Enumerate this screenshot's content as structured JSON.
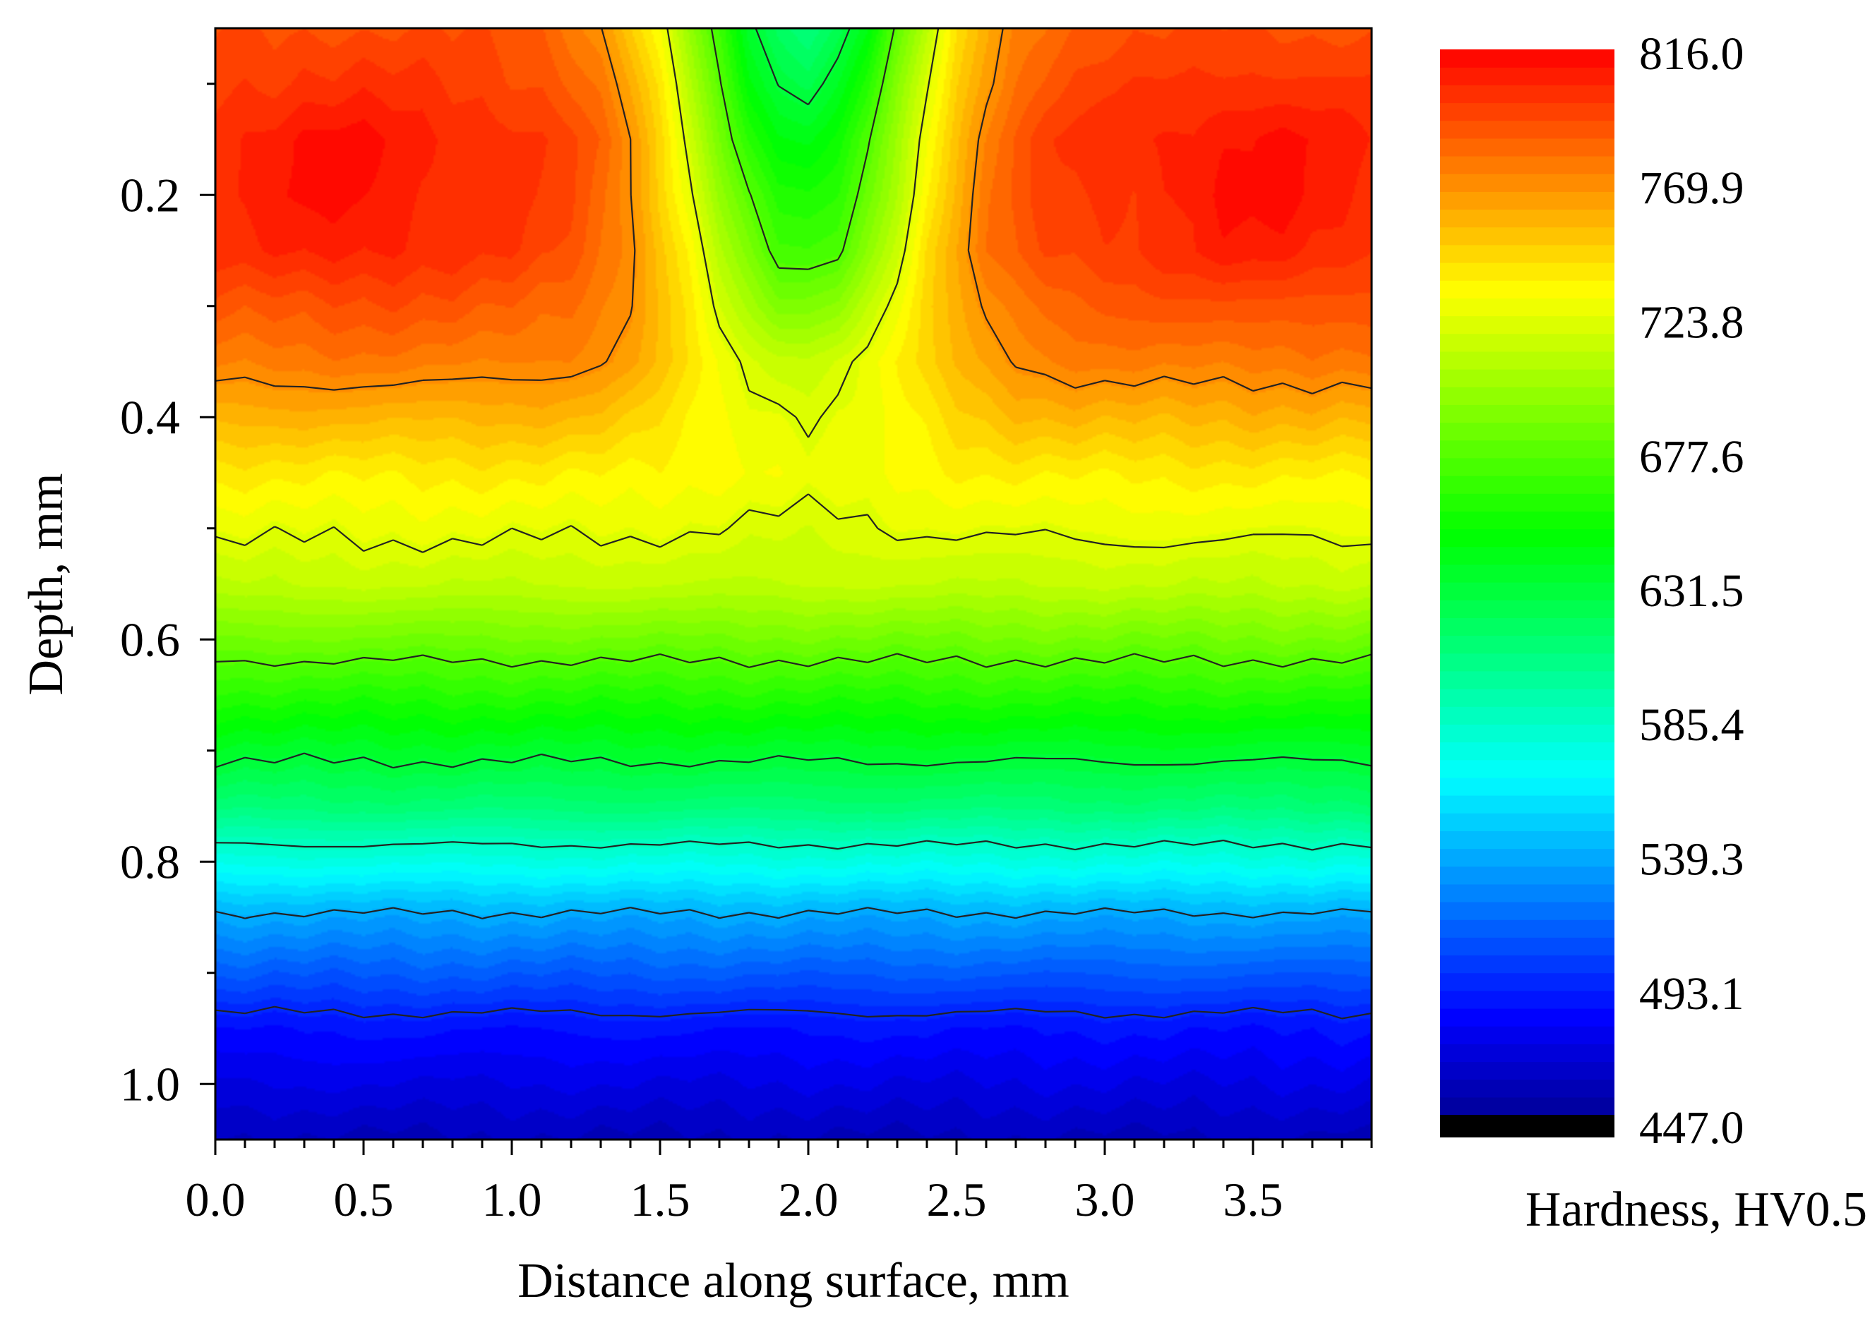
{
  "chart_data": {
    "type": "heatmap",
    "subtype": "filled-contour",
    "xlabel": "Distance along surface, mm",
    "ylabel": "Depth, mm",
    "xlim": [
      0.0,
      3.9
    ],
    "ylim": [
      0.05,
      1.05
    ],
    "y_inverted": true,
    "x_ticks": [
      0.0,
      0.5,
      1.0,
      1.5,
      2.0,
      2.5,
      3.0,
      3.5
    ],
    "x_tick_labels": [
      "0.0",
      "0.5",
      "1.0",
      "1.5",
      "2.0",
      "2.5",
      "3.0",
      "3.5"
    ],
    "y_ticks": [
      0.2,
      0.4,
      0.6,
      0.8,
      1.0
    ],
    "y_tick_labels": [
      "0.2",
      "0.4",
      "0.6",
      "0.8",
      "1.0"
    ],
    "colorbar": {
      "label": "Hardness, HV0.5",
      "min": 447.0,
      "max": 816.0,
      "tick_values": [
        816.0,
        769.9,
        723.8,
        677.6,
        631.5,
        585.4,
        539.3,
        493.1,
        447.0
      ],
      "tick_labels": [
        "816.0",
        "769.9",
        "723.8",
        "677.6",
        "631.5",
        "585.4",
        "539.3",
        "493.1",
        "447.0"
      ],
      "colors": [
        "#000000",
        "#0000ff",
        "#00ffff",
        "#00ff00",
        "#ffff00",
        "#ff0000"
      ],
      "levels": 60
    },
    "contour_levels": [
      492,
      538,
      584,
      630,
      676,
      722,
      768
    ],
    "grid_x": [
      0.0,
      0.1,
      0.2,
      0.3,
      0.4,
      0.5,
      0.6,
      0.7,
      0.8,
      0.9,
      1.0,
      1.1,
      1.2,
      1.3,
      1.4,
      1.5,
      1.6,
      1.7,
      1.8,
      1.9,
      2.0,
      2.1,
      2.2,
      2.3,
      2.4,
      2.5,
      2.6,
      2.7,
      2.8,
      2.9,
      3.0,
      3.1,
      3.2,
      3.3,
      3.4,
      3.5,
      3.6,
      3.7,
      3.8,
      3.9
    ],
    "grid_y": [
      0.05,
      0.1,
      0.15,
      0.2,
      0.25,
      0.3,
      0.35,
      0.4,
      0.45,
      0.5,
      0.55,
      0.6,
      0.65,
      0.7,
      0.75,
      0.8,
      0.85,
      0.9,
      0.95,
      1.0,
      1.05
    ],
    "depth_profile": {
      "depth": [
        0.05,
        0.15,
        0.25,
        0.35,
        0.45,
        0.55,
        0.65,
        0.75,
        0.85,
        0.95,
        1.05
      ],
      "edge_hardness": [
        790,
        802,
        798,
        775,
        738,
        712,
        660,
        610,
        535,
        485,
        458
      ],
      "center_hardness": [
        610,
        640,
        668,
        712,
        728,
        712,
        660,
        610,
        535,
        485,
        458
      ]
    }
  }
}
